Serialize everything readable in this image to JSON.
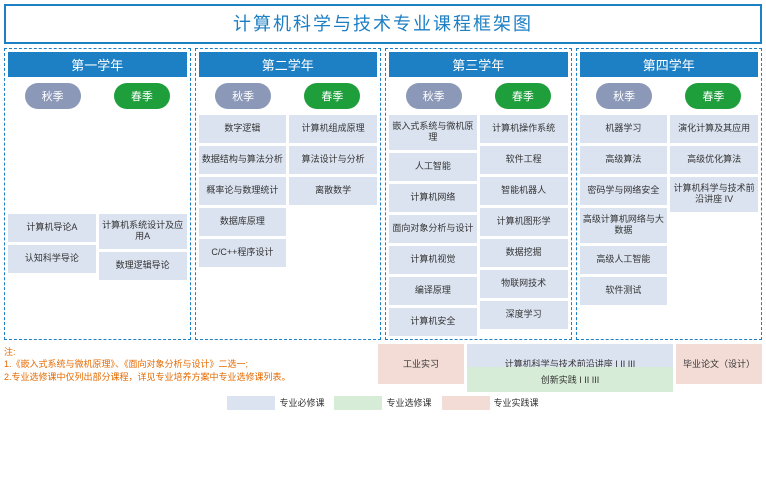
{
  "title": "计算机科学与技术专业课程框架图",
  "colors": {
    "border": "#1d7fc4",
    "header_bg": "#1d7fc4",
    "header_text": "#ffffff",
    "fall_pill": "#8b98b7",
    "spring_pill": "#1f9e3c",
    "course_bg": "#dbe3f0",
    "pink_bg": "#f4dcd6",
    "green_bg": "#d6ecd6",
    "note_text": "#e46a00"
  },
  "season_labels": {
    "fall": "秋季",
    "spring": "春季"
  },
  "years": [
    {
      "label": "第一学年",
      "fall": [
        "计算机导论A",
        "认知科学导论"
      ],
      "spring": [
        "计算机系统设计及应用A",
        "数理逻辑导论"
      ],
      "pad_top": true
    },
    {
      "label": "第二学年",
      "fall": [
        "数字逻辑",
        "数据结构与算法分析",
        "概率论与数理统计",
        "数据库原理",
        "C/C++程序设计"
      ],
      "spring": [
        "计算机组成原理",
        "算法设计与分析",
        "离散数学"
      ]
    },
    {
      "label": "第三学年",
      "fall": [
        "嵌入式系统与微机原理",
        "人工智能",
        "计算机网络",
        "面向对象分析与设计",
        "计算机视觉",
        "编译原理",
        "计算机安全"
      ],
      "spring": [
        "计算机操作系统",
        "软件工程",
        "智能机器人",
        "计算机图形学",
        "数据挖掘",
        "物联网技术",
        "深度学习"
      ]
    },
    {
      "label": "第四学年",
      "fall": [
        "机器学习",
        "高级算法",
        "密码学与网络安全",
        "高级计算机网络与大数据",
        "高级人工智能",
        "软件测试"
      ],
      "spring": [
        "演化计算及其应用",
        "高级优化算法",
        "计算机科学与技术前沿讲座 IV"
      ]
    }
  ],
  "bottom": {
    "industrial": "工业实习",
    "frontier": "计算机科学与技术前沿讲座 I II III",
    "innovation": "创新实践 I II III",
    "thesis": "毕业论文（设计）"
  },
  "legend": {
    "required": "专业必修课",
    "elective": "专业选修课",
    "practice": "专业实践课"
  },
  "notes": {
    "head": "注:",
    "l1": "1.《嵌入式系统与微机原理》、《面向对象分析与设计》二选一;",
    "l2": "2.专业选修课中仅列出部分课程，详见专业培养方案中专业选修课列表。"
  }
}
